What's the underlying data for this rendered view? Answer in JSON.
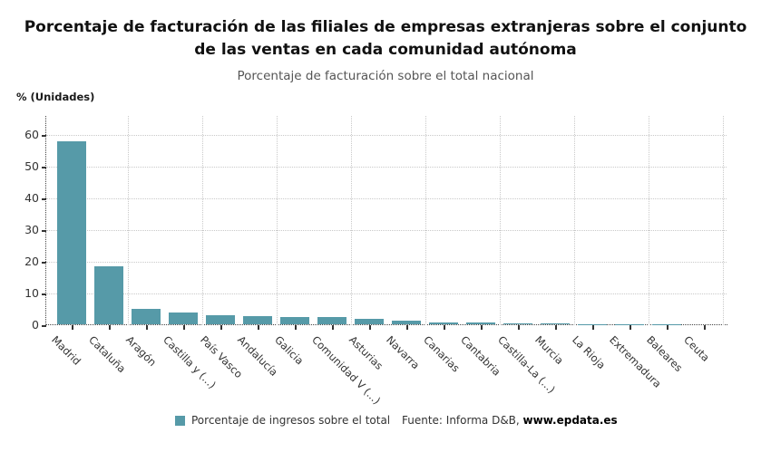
{
  "header": {
    "title": "Porcentaje de facturación de las filiales de empresas extranjeras sobre el conjunto de las ventas en cada comunidad autónoma",
    "subtitle": "Porcentaje de facturación sobre el total nacional"
  },
  "chart_data": {
    "type": "bar",
    "title": "Porcentaje de facturación de las filiales de empresas extranjeras sobre el conjunto de las ventas en cada comunidad autónoma",
    "subtitle": "Porcentaje de facturación sobre el total nacional",
    "ylabel": "% (Unidades)",
    "xlabel": "",
    "categories": [
      "Madrid",
      "Cataluña",
      "Aragón",
      "Castilla y (...)",
      "País Vasco",
      "Andalucía",
      "Galicia",
      "Comunidad V (...)",
      "Asturias",
      "Navarra",
      "Canarias",
      "Cantabria",
      "Castilla-La (...)",
      "Murcia",
      "La Rioja",
      "Extremadura",
      "Baleares",
      "Ceuta"
    ],
    "values": [
      57.7,
      18.3,
      4.8,
      3.6,
      2.9,
      2.6,
      2.4,
      2.3,
      1.8,
      1.2,
      0.7,
      0.5,
      0.3,
      0.2,
      0.12,
      0.08,
      0.05,
      0.02
    ],
    "yticks": [
      0,
      10,
      20,
      30,
      40,
      50,
      60
    ],
    "ylim": [
      0,
      66
    ],
    "grid": true,
    "x_label_rotation_deg": 45,
    "bar_color": "#569aa8",
    "legend_position": "bottom"
  },
  "legend": {
    "swatch_color": "#569aa8",
    "label": "Porcentaje de ingresos sobre el total"
  },
  "footer": {
    "source_prefix": "Fuente: Informa D&B, ",
    "source_link": "www.epdata.es"
  }
}
